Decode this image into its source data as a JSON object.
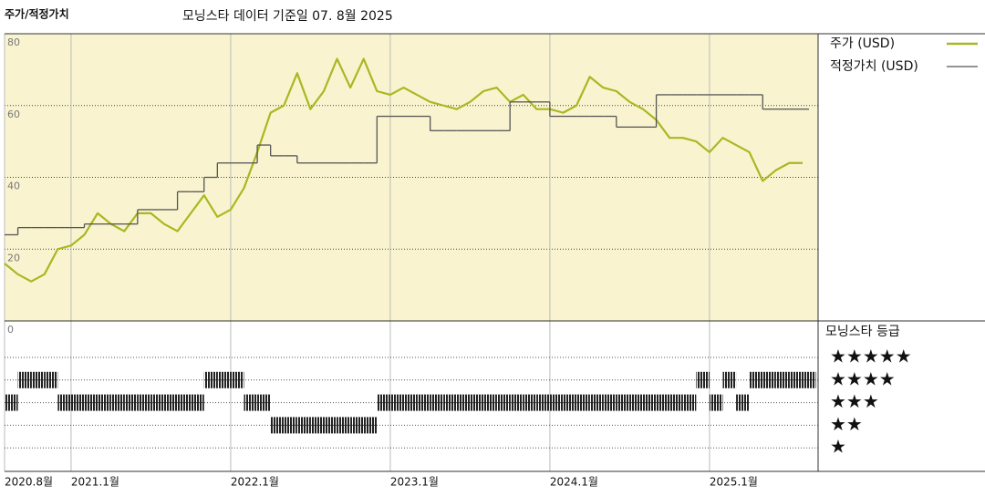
{
  "chart_data": {
    "type": "line",
    "title": "주가/적정가치",
    "subtitle": "모닝스타 데이터 기준일 07. 8월 2025",
    "x": [
      "2020-08",
      "2020-09",
      "2020-10",
      "2020-11",
      "2020-12",
      "2021-01",
      "2021-02",
      "2021-03",
      "2021-04",
      "2021-05",
      "2021-06",
      "2021-07",
      "2021-08",
      "2021-09",
      "2021-10",
      "2021-11",
      "2021-12",
      "2022-01",
      "2022-02",
      "2022-03",
      "2022-04",
      "2022-05",
      "2022-06",
      "2022-07",
      "2022-08",
      "2022-09",
      "2022-10",
      "2022-11",
      "2022-12",
      "2023-01",
      "2023-02",
      "2023-03",
      "2023-04",
      "2023-05",
      "2023-06",
      "2023-07",
      "2023-08",
      "2023-09",
      "2023-10",
      "2023-11",
      "2023-12",
      "2024-01",
      "2024-02",
      "2024-03",
      "2024-04",
      "2024-05",
      "2024-06",
      "2024-07",
      "2024-08",
      "2024-09",
      "2024-10",
      "2024-11",
      "2024-12",
      "2025-01",
      "2025-02",
      "2025-03",
      "2025-04",
      "2025-05",
      "2025-06",
      "2025-07",
      "2025-08"
    ],
    "series": [
      {
        "name": "주가 (USD)",
        "color": "#a9b722",
        "values": [
          16,
          13,
          11,
          13,
          20,
          21,
          24,
          30,
          27,
          25,
          30,
          30,
          27,
          25,
          30,
          35,
          29,
          31,
          37,
          47,
          58,
          60,
          69,
          59,
          64,
          73,
          65,
          73,
          64,
          63,
          65,
          63,
          61,
          60,
          59,
          61,
          64,
          65,
          61,
          63,
          59,
          59,
          58,
          60,
          68,
          65,
          64,
          61,
          59,
          56,
          51,
          51,
          50,
          47,
          51,
          49,
          47,
          39,
          42,
          44,
          44
        ]
      },
      {
        "name": "적정가치 (USD)",
        "color": "#555555",
        "step": true,
        "values": [
          24,
          26,
          26,
          26,
          26,
          26,
          27,
          27,
          27,
          27,
          31,
          31,
          31,
          36,
          36,
          40,
          44,
          44,
          44,
          49,
          46,
          46,
          44,
          44,
          44,
          44,
          44,
          44,
          57,
          57,
          57,
          57,
          53,
          53,
          53,
          53,
          53,
          53,
          61,
          61,
          61,
          57,
          57,
          57,
          57,
          57,
          54,
          54,
          54,
          63,
          63,
          63,
          63,
          63,
          63,
          63,
          63,
          59,
          59,
          59,
          59
        ]
      }
    ],
    "ylim": [
      0,
      80
    ],
    "yticks": [
      20,
      40,
      60,
      80
    ],
    "grid": true,
    "xticks": [
      {
        "value": "2020-08",
        "label": "2020.8월"
      },
      {
        "value": "2021-01",
        "label": "2021.1월"
      },
      {
        "value": "2022-01",
        "label": "2022.1월"
      },
      {
        "value": "2023-01",
        "label": "2023.1월"
      },
      {
        "value": "2024-01",
        "label": "2024.1월"
      },
      {
        "value": "2025-01",
        "label": "2025.1월"
      }
    ],
    "rating": {
      "title": "모닝스타 등급",
      "axis_label": "0",
      "levels": [
        {
          "value": 5,
          "label": "★★★★★"
        },
        {
          "value": 4,
          "label": "★★★★"
        },
        {
          "value": 3,
          "label": "★★★"
        },
        {
          "value": 2,
          "label": "★★"
        },
        {
          "value": 1,
          "label": "★"
        }
      ],
      "values": [
        3,
        4,
        4,
        4,
        3,
        3,
        3,
        3,
        3,
        3,
        3,
        3,
        3,
        3,
        3,
        4,
        4,
        4,
        3,
        3,
        2,
        2,
        2,
        2,
        2,
        2,
        2,
        2,
        3,
        3,
        3,
        3,
        3,
        3,
        3,
        3,
        3,
        3,
        3,
        3,
        3,
        3,
        3,
        3,
        3,
        3,
        3,
        3,
        3,
        3,
        3,
        3,
        4,
        3,
        4,
        3,
        4,
        4,
        4,
        4,
        4
      ]
    }
  }
}
